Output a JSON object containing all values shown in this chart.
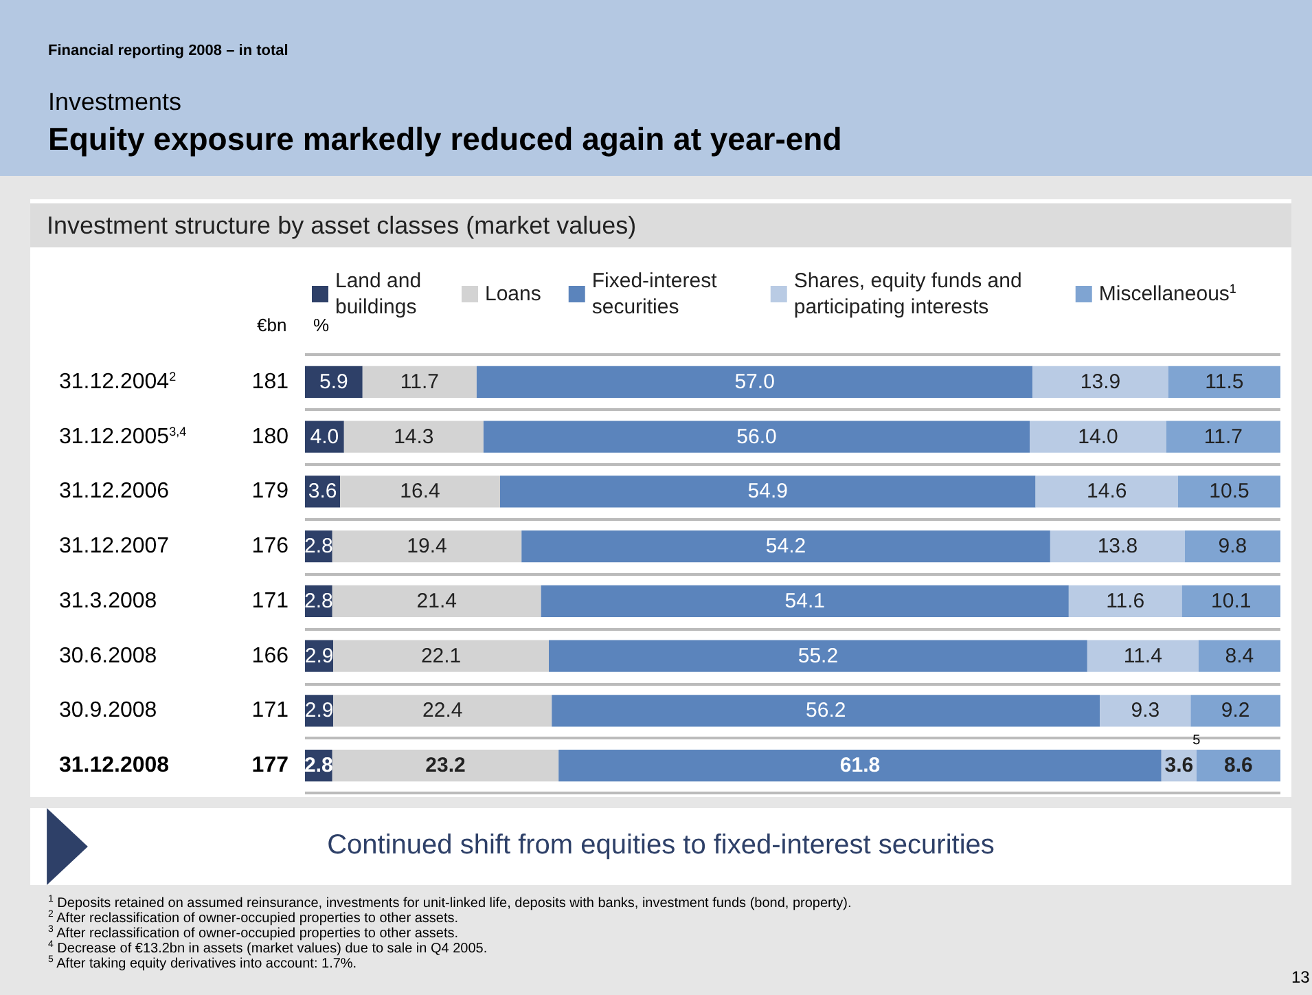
{
  "chart_data": {
    "type": "bar",
    "orientation": "horizontal",
    "stacked": true,
    "legend": "top",
    "grid": "y",
    "subtitle": "Investments",
    "title": "Equity exposure markedly reduced again at year-end",
    "legend_title": "Investment structure by asset classes (market values)",
    "categories": [
      "31.12.2004$^{2}$",
      "31.12.2005$^{3,4}$",
      "31.12.2006",
      "31.12.2007",
      "31.3.2008",
      "30.6.2008",
      "30.9.2008",
      "31.12.2008"
    ],
    "series": [
      {
        "name": "Land and buildings",
        "color": "#2e4068",
        "values": [
          5.9,
          4.0,
          3.6,
          2.8,
          2.8,
          2.9,
          2.9,
          2.8
        ],
        "value_labels": [
          "5.9",
          "4.0",
          "3.6",
          "2.8",
          "2.8",
          "2.9",
          "2.9",
          "2.8"
        ]
      },
      {
        "name": "Loans",
        "color": "#d3d3d3",
        "values": [
          11.7,
          14.3,
          16.4,
          19.4,
          21.4,
          22.1,
          22.4,
          23.2
        ],
        "value_labels": [
          "11.7",
          "14.3",
          "16.4",
          "19.4",
          "21.4",
          "22.1",
          "22.4",
          "23.2"
        ]
      },
      {
        "name": "Fixed-interest securities",
        "color": "#5b84bc",
        "values": [
          57.0,
          56.0,
          54.9,
          54.2,
          54.1,
          55.2,
          56.2,
          61.8
        ],
        "value_labels": [
          "57.0",
          "56.0",
          "54.9",
          "54.2",
          "54.1",
          "55.2",
          "56.2",
          "61.8"
        ]
      },
      {
        "name": "Shares, equity funds and participating interests",
        "color": "#b9cbe4",
        "values": [
          13.9,
          14.0,
          14.6,
          13.8,
          11.6,
          11.4,
          9.3,
          3.6
        ],
        "value_labels": [
          "13.9",
          "14.0",
          "14.6",
          "13.8",
          "11.6",
          "11.4",
          "9.3",
          "3.6"
        ]
      },
      {
        "name": "Miscellaneous$^{1}$",
        "color": "#7fa4d2",
        "values": [
          11.5,
          11.7,
          10.5,
          9.8,
          10.1,
          8.4,
          9.2,
          8.6
        ],
        "value_labels": [
          "11.5",
          "11.7",
          "10.5",
          "9.8",
          "10.1",
          "8.4",
          "9.2",
          "8.6"
        ]
      }
    ],
    "annotations": [
      "Financial reporting 2008 – in total",
      "€bn",
      "%",
      "181",
      "180",
      "179",
      "176",
      "171",
      "166",
      "171",
      "177",
      "Continued shift from equities to fixed-interest securities",
      "$^{1}$ Deposits retained on assumed reinsurance, investments for unit-linked life, deposits with banks, investment funds (bond, property).",
      "$^{2}$ After reclassification of owner-occupied properties to other assets.",
      "$^{3}$ After reclassification of owner-occupied properties to other assets.",
      "$^{4}$ Decrease of €13.2bn in assets (market values) due to sale in Q4 2005.",
      "$^{5}$ After taking equity derivatives into account: 1.7%.",
      "13",
      {
        "text": "5",
        "x": 91.4,
        "y": "31.12.2008"
      }
    ]
  }
}
